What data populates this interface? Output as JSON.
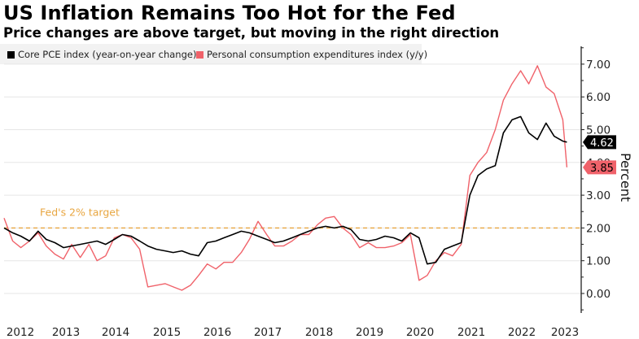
{
  "header": {
    "title": "US Inflation Remains Too Hot for the Fed",
    "subtitle": "Price changes are above target, but moving in the right direction"
  },
  "legend": [
    {
      "label": "Core PCE index (year-on-year change)",
      "color": "#000000"
    },
    {
      "label": "Personal consumption expenditures index (y/y)",
      "color": "#f0626a"
    }
  ],
  "chart_data": {
    "type": "line",
    "title": "US Inflation Remains Too Hot for the Fed",
    "subtitle": "Price changes are above target, but moving in the right direction",
    "xlabel": "",
    "ylabel": "Percent",
    "ylim": [
      -0.5,
      7.5
    ],
    "xlim": [
      2012.0,
      2023.2
    ],
    "grid": true,
    "legend_position": "top-left",
    "y_axis_side": "right",
    "yticks": [
      "0.00",
      "1.00",
      "2.00",
      "3.00",
      "4.00",
      "5.00",
      "6.00",
      "7.00"
    ],
    "ytick_values": [
      0,
      1,
      2,
      3,
      4,
      5,
      6,
      7
    ],
    "xticks": [
      "2012",
      "2013",
      "2014",
      "2015",
      "2016",
      "2017",
      "2018",
      "2019",
      "2020",
      "2021",
      "2022",
      "2023"
    ],
    "reference_line": {
      "value": 2.0,
      "label": "Fed's 2% target",
      "color": "#e8a640",
      "style": "dashed"
    },
    "end_labels": [
      {
        "series": "Core PCE index (year-on-year change)",
        "text": "4.62",
        "value": 4.62,
        "bg": "#000000",
        "fg": "#ffffff"
      },
      {
        "series": "Personal consumption expenditures index (y/y)",
        "text": "3.85",
        "value": 3.85,
        "bg": "#f0626a",
        "fg": "#000000"
      }
    ],
    "series": [
      {
        "name": "Core PCE index (year-on-year change)",
        "color": "#000000",
        "x": [
          2012.0,
          2012.17,
          2012.33,
          2012.5,
          2012.67,
          2012.83,
          2013.0,
          2013.17,
          2013.33,
          2013.5,
          2013.67,
          2013.83,
          2014.0,
          2014.17,
          2014.33,
          2014.5,
          2014.67,
          2014.83,
          2015.0,
          2015.17,
          2015.33,
          2015.5,
          2015.67,
          2015.83,
          2016.0,
          2016.17,
          2016.33,
          2016.5,
          2016.67,
          2016.83,
          2017.0,
          2017.17,
          2017.33,
          2017.5,
          2017.67,
          2017.83,
          2018.0,
          2018.17,
          2018.33,
          2018.5,
          2018.67,
          2018.83,
          2019.0,
          2019.17,
          2019.33,
          2019.5,
          2019.67,
          2019.83,
          2020.0,
          2020.17,
          2020.33,
          2020.5,
          2020.67,
          2020.83,
          2021.0,
          2021.17,
          2021.33,
          2021.5,
          2021.67,
          2021.83,
          2022.0,
          2022.17,
          2022.33,
          2022.5,
          2022.67,
          2022.83,
          2023.0,
          2023.08
        ],
        "values": [
          2.0,
          1.85,
          1.75,
          1.6,
          1.9,
          1.65,
          1.55,
          1.4,
          1.45,
          1.5,
          1.55,
          1.6,
          1.5,
          1.65,
          1.8,
          1.75,
          1.6,
          1.45,
          1.35,
          1.3,
          1.25,
          1.3,
          1.2,
          1.15,
          1.55,
          1.6,
          1.7,
          1.8,
          1.9,
          1.85,
          1.75,
          1.65,
          1.55,
          1.6,
          1.7,
          1.8,
          1.9,
          2.0,
          2.05,
          2.0,
          2.05,
          1.95,
          1.65,
          1.6,
          1.65,
          1.75,
          1.7,
          1.6,
          1.85,
          1.7,
          0.9,
          0.95,
          1.35,
          1.45,
          1.55,
          3.0,
          3.6,
          3.8,
          3.9,
          4.9,
          5.3,
          5.4,
          4.9,
          4.7,
          5.2,
          4.8,
          4.65,
          4.62
        ]
      },
      {
        "name": "Personal consumption expenditures index (y/y)",
        "color": "#f0626a",
        "x": [
          2012.0,
          2012.17,
          2012.33,
          2012.5,
          2012.67,
          2012.83,
          2013.0,
          2013.17,
          2013.33,
          2013.5,
          2013.67,
          2013.83,
          2014.0,
          2014.17,
          2014.33,
          2014.5,
          2014.67,
          2014.83,
          2015.0,
          2015.17,
          2015.33,
          2015.5,
          2015.67,
          2015.83,
          2016.0,
          2016.17,
          2016.33,
          2016.5,
          2016.67,
          2016.83,
          2017.0,
          2017.17,
          2017.33,
          2017.5,
          2017.67,
          2017.83,
          2018.0,
          2018.17,
          2018.33,
          2018.5,
          2018.67,
          2018.83,
          2019.0,
          2019.17,
          2019.33,
          2019.5,
          2019.67,
          2019.83,
          2020.0,
          2020.17,
          2020.33,
          2020.5,
          2020.67,
          2020.83,
          2021.0,
          2021.17,
          2021.33,
          2021.5,
          2021.67,
          2021.83,
          2022.0,
          2022.17,
          2022.33,
          2022.5,
          2022.67,
          2022.83,
          2023.0,
          2023.08
        ],
        "values": [
          2.3,
          1.6,
          1.4,
          1.6,
          1.85,
          1.45,
          1.2,
          1.05,
          1.5,
          1.1,
          1.5,
          1.0,
          1.15,
          1.7,
          1.8,
          1.7,
          1.35,
          0.2,
          0.25,
          0.3,
          0.2,
          0.1,
          0.25,
          0.55,
          0.9,
          0.75,
          0.95,
          0.95,
          1.25,
          1.65,
          2.2,
          1.8,
          1.45,
          1.45,
          1.6,
          1.8,
          1.8,
          2.1,
          2.3,
          2.35,
          2.0,
          1.8,
          1.4,
          1.55,
          1.4,
          1.4,
          1.45,
          1.55,
          1.8,
          0.4,
          0.55,
          1.0,
          1.25,
          1.15,
          1.5,
          3.6,
          4.0,
          4.3,
          5.0,
          5.9,
          6.4,
          6.8,
          6.4,
          6.95,
          6.3,
          6.1,
          5.3,
          3.85
        ]
      }
    ]
  }
}
